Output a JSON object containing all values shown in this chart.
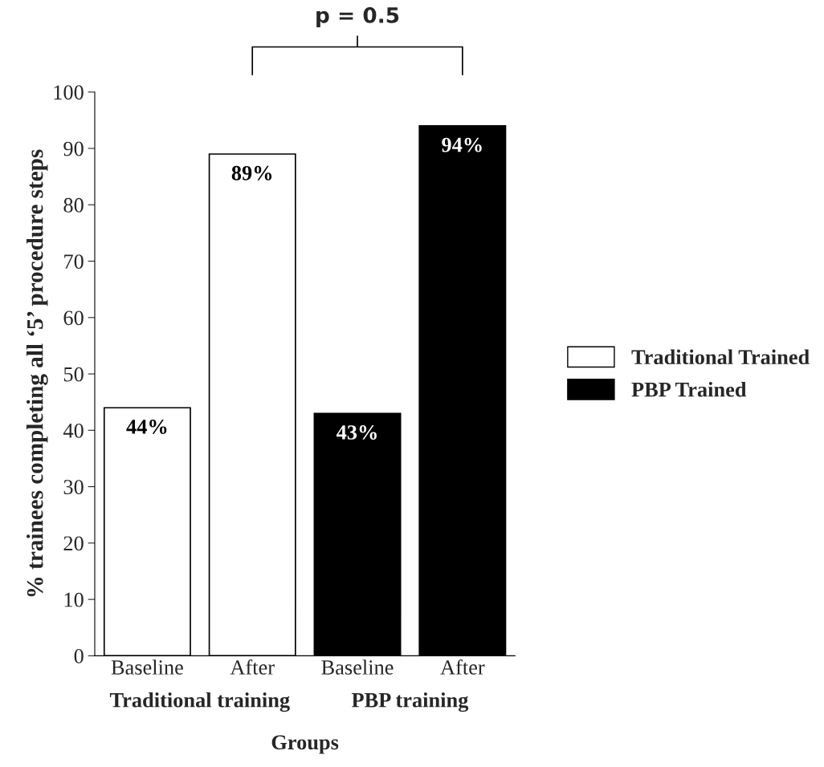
{
  "chart_data": {
    "type": "bar",
    "categories": [
      "Baseline",
      "After",
      "Baseline",
      "After"
    ],
    "series": [
      {
        "name": "Traditional Trained",
        "color": "#ffffff",
        "values": [
          44,
          89,
          null,
          null
        ],
        "value_labels": [
          "44%",
          "89%",
          null,
          null
        ]
      },
      {
        "name": "PBP Trained",
        "color": "#000000",
        "values": [
          null,
          null,
          43,
          94
        ],
        "value_labels": [
          null,
          null,
          "43%",
          "94%"
        ]
      }
    ],
    "xlabel": "Groups",
    "ylabel": "% trainees completing all ‘5’ procedure steps",
    "ylim": [
      0,
      100
    ],
    "yticks": [
      0,
      10,
      20,
      30,
      40,
      50,
      60,
      70,
      80,
      90,
      100
    ],
    "annotations": [
      "p = 0.5",
      "Traditional training",
      "PBP training"
    ],
    "legend": "right",
    "grid": false
  }
}
